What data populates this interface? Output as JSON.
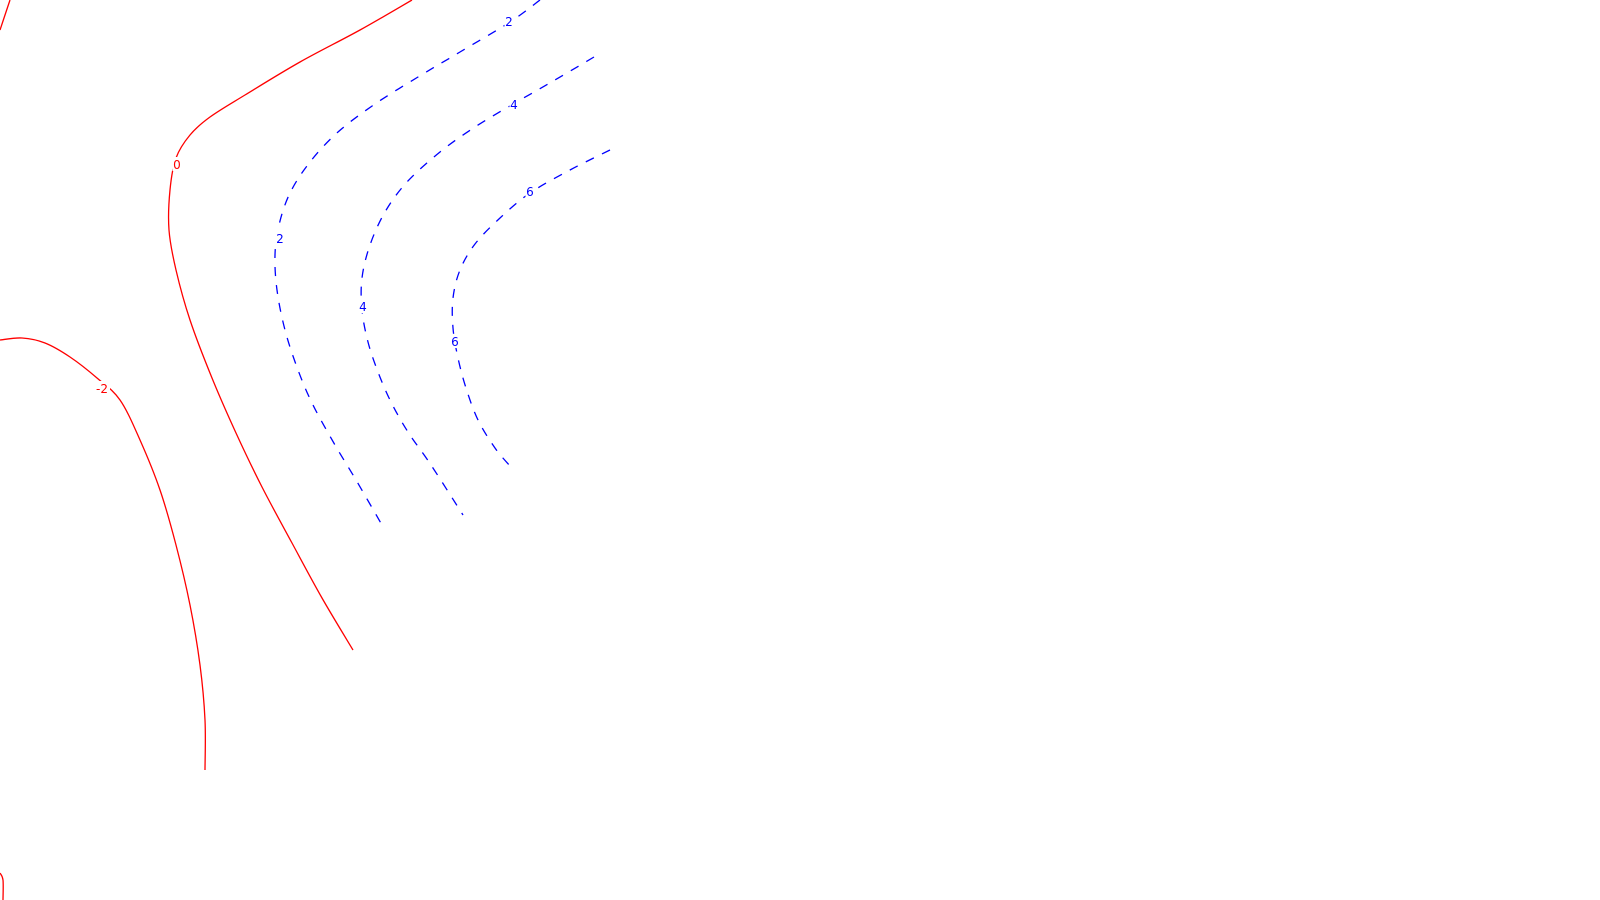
{
  "chart_data": {
    "type": "contour",
    "levels": [
      {
        "value": -2,
        "label": "-2",
        "color": "#ff0000",
        "style": "solid",
        "segments": [
          [
            [
              0,
              340
            ],
            [
              22,
              338
            ],
            [
              45,
              343
            ],
            [
              70,
              357
            ],
            [
              97,
              378
            ],
            [
              120,
              400
            ],
            [
              140,
              440
            ],
            [
              160,
              490
            ],
            [
              176,
              545
            ],
            [
              190,
              605
            ],
            [
              200,
              665
            ],
            [
              205,
              720
            ],
            [
              205,
              770
            ]
          ],
          [
            [
              0,
              873
            ],
            [
              3,
              880
            ],
            [
              3,
              900
            ]
          ]
        ],
        "label_positions": [
          [
            102,
            389
          ]
        ]
      },
      {
        "value": 0,
        "label": "0",
        "color": "#ff0000",
        "style": "solid",
        "segments": [
          [
            [
              0,
              30
            ],
            [
              6,
              12
            ],
            [
              10,
              0
            ]
          ],
          [
            [
              412,
              0
            ],
            [
              360,
              30
            ],
            [
              300,
              62
            ],
            [
              245,
              95
            ],
            [
              210,
              117
            ],
            [
              190,
              135
            ],
            [
              176,
              158
            ],
            [
              170,
              190
            ],
            [
              169,
              230
            ],
            [
              176,
              270
            ],
            [
              190,
              320
            ],
            [
              212,
              378
            ],
            [
              236,
              433
            ],
            [
              262,
              487
            ],
            [
              292,
              543
            ],
            [
              322,
              598
            ],
            [
              353,
              650
            ]
          ]
        ],
        "label_positions": [
          [
            177,
            165
          ]
        ]
      },
      {
        "value": 2,
        "label": "2",
        "color": "#0000ff",
        "style": "dashed",
        "segments": [
          [
            [
              540,
              0
            ],
            [
              510,
              22
            ],
            [
              460,
              52
            ],
            [
              418,
              77
            ],
            [
              375,
              104
            ],
            [
              338,
              132
            ],
            [
              310,
              162
            ],
            [
              290,
              193
            ],
            [
              279,
              225
            ],
            [
              275,
              255
            ],
            [
              277,
              290
            ],
            [
              285,
              330
            ],
            [
              298,
              370
            ],
            [
              313,
              405
            ],
            [
              335,
              445
            ],
            [
              356,
              480
            ],
            [
              382,
              525
            ]
          ]
        ],
        "label_positions": [
          [
            509,
            22
          ],
          [
            280,
            239
          ]
        ]
      },
      {
        "value": 4,
        "label": "4",
        "color": "#0000ff",
        "style": "dashed",
        "segments": [
          [
            [
              594,
              57
            ],
            [
              555,
              80
            ],
            [
              515,
              103
            ],
            [
              475,
              127
            ],
            [
              440,
              152
            ],
            [
              407,
              182
            ],
            [
              385,
              212
            ],
            [
              370,
              245
            ],
            [
              362,
              278
            ],
            [
              362,
              310
            ],
            [
              368,
              342
            ],
            [
              378,
              372
            ],
            [
              391,
              402
            ],
            [
              408,
              432
            ],
            [
              431,
              465
            ],
            [
              463,
              515
            ]
          ]
        ],
        "label_positions": [
          [
            514,
            105
          ],
          [
            363,
            307
          ]
        ]
      },
      {
        "value": 6,
        "label": "6",
        "color": "#0000ff",
        "style": "dashed",
        "segments": [
          [
            [
              610,
              150
            ],
            [
              570,
              170
            ],
            [
              530,
              193
            ],
            [
              500,
              218
            ],
            [
              475,
              244
            ],
            [
              460,
              270
            ],
            [
              453,
              298
            ],
            [
              453,
              328
            ],
            [
              458,
              358
            ],
            [
              466,
              388
            ],
            [
              478,
              420
            ],
            [
              495,
              448
            ],
            [
              510,
              466
            ]
          ]
        ],
        "label_positions": [
          [
            530,
            192
          ],
          [
            455,
            342
          ]
        ]
      }
    ],
    "domain": {
      "x": [
        0,
        1600
      ],
      "y": [
        0,
        900
      ]
    },
    "grid": false,
    "legend": "none",
    "title": "",
    "xlabel": "",
    "ylabel": ""
  }
}
